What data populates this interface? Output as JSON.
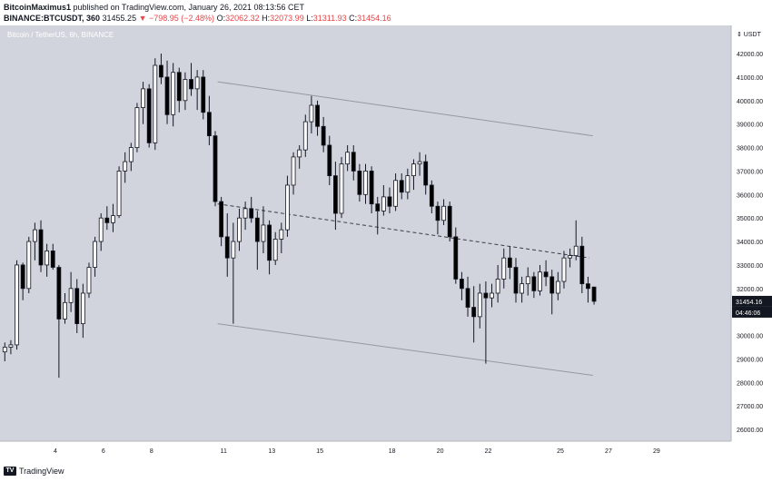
{
  "header": {
    "author": "BitcoinMaximus1",
    "published": "published on TradingView.com, January 26, 2021 08:13:56 CET",
    "symbol": "BINANCE:BTCUSDT, 360",
    "price": "31455.25",
    "change": "▼ −798.95 (−2.48%)",
    "o_label": "O:",
    "o_value": "32062.32",
    "h_label": "H:",
    "h_value": "32073.99",
    "l_label": "L:",
    "l_value": "31311.93",
    "c_label": "C:",
    "c_value": "31454.16"
  },
  "pair_label": "Bitcoin / TetherUS, 6h, BINANCE",
  "footer": {
    "brand": "TradingView",
    "icon": "tradingview-logo-icon"
  },
  "colors": {
    "background": "#d1d4dc",
    "up": "#ffffff",
    "down": "#000000",
    "wick": "#131722",
    "channel": "#9598a1",
    "price_tag": "#131722"
  },
  "chart_data": {
    "type": "candlestick",
    "y_unit": "USDT",
    "ylim": [
      25500,
      43200
    ],
    "y_ticks": [
      26000,
      27000,
      28000,
      29000,
      30000,
      31000,
      32000,
      33000,
      34000,
      35000,
      36000,
      37000,
      38000,
      39000,
      40000,
      41000,
      42000
    ],
    "y_tick_labels": [
      "26000.00",
      "27000.00",
      "28000.00",
      "29000.00",
      "30000.00",
      "31000.00",
      "32000.00",
      "33000.00",
      "34000.00",
      "35000.00",
      "36000.00",
      "37000.00",
      "38000.00",
      "39000.00",
      "40000.00",
      "41000.00",
      "42000.00"
    ],
    "x_ticks": [
      "4",
      "6",
      "8",
      "11",
      "13",
      "15",
      "18",
      "20",
      "22",
      "25",
      "27",
      "29"
    ],
    "x_tick_pos": [
      2.5,
      4.5,
      6.5,
      9.5,
      11.5,
      13.5,
      16.5,
      18.5,
      20.5,
      23.5,
      25.5,
      27.5
    ],
    "xlim": [
      0.2,
      30.6
    ],
    "last_price": "31454.16",
    "countdown": "04:46:06",
    "candles": [
      {
        "t": 0.4,
        "o": 29300,
        "h": 29700,
        "l": 28900,
        "c": 29500
      },
      {
        "t": 0.65,
        "o": 29500,
        "h": 29800,
        "l": 29200,
        "c": 29600
      },
      {
        "t": 0.9,
        "o": 29600,
        "h": 33200,
        "l": 29400,
        "c": 33000
      },
      {
        "t": 1.15,
        "o": 33000,
        "h": 33100,
        "l": 31500,
        "c": 32000
      },
      {
        "t": 1.4,
        "o": 32000,
        "h": 34200,
        "l": 31800,
        "c": 34000
      },
      {
        "t": 1.65,
        "o": 34000,
        "h": 34800,
        "l": 33200,
        "c": 34500
      },
      {
        "t": 1.9,
        "o": 34500,
        "h": 34900,
        "l": 32700,
        "c": 33000
      },
      {
        "t": 2.15,
        "o": 33000,
        "h": 33900,
        "l": 32500,
        "c": 33600
      },
      {
        "t": 2.4,
        "o": 33600,
        "h": 33900,
        "l": 32800,
        "c": 32900
      },
      {
        "t": 2.65,
        "o": 32900,
        "h": 33000,
        "l": 28200,
        "c": 30700
      },
      {
        "t": 2.9,
        "o": 30700,
        "h": 31800,
        "l": 30500,
        "c": 31400
      },
      {
        "t": 3.15,
        "o": 31400,
        "h": 32700,
        "l": 31000,
        "c": 32000
      },
      {
        "t": 3.4,
        "o": 32000,
        "h": 32400,
        "l": 30100,
        "c": 30500
      },
      {
        "t": 3.65,
        "o": 30500,
        "h": 32200,
        "l": 29900,
        "c": 31800
      },
      {
        "t": 3.9,
        "o": 31800,
        "h": 33100,
        "l": 31600,
        "c": 32900
      },
      {
        "t": 4.15,
        "o": 32900,
        "h": 34200,
        "l": 32500,
        "c": 34000
      },
      {
        "t": 4.4,
        "o": 34000,
        "h": 35200,
        "l": 33600,
        "c": 35000
      },
      {
        "t": 4.65,
        "o": 35000,
        "h": 35500,
        "l": 34500,
        "c": 34800
      },
      {
        "t": 4.9,
        "o": 34800,
        "h": 35600,
        "l": 34400,
        "c": 35100
      },
      {
        "t": 5.15,
        "o": 35100,
        "h": 37200,
        "l": 35000,
        "c": 37000
      },
      {
        "t": 5.4,
        "o": 37000,
        "h": 37800,
        "l": 36500,
        "c": 37400
      },
      {
        "t": 5.65,
        "o": 37400,
        "h": 38200,
        "l": 37000,
        "c": 38000
      },
      {
        "t": 5.9,
        "o": 38000,
        "h": 39900,
        "l": 37800,
        "c": 39700
      },
      {
        "t": 6.15,
        "o": 39700,
        "h": 40800,
        "l": 39000,
        "c": 40500
      },
      {
        "t": 6.4,
        "o": 40500,
        "h": 40700,
        "l": 38000,
        "c": 38200
      },
      {
        "t": 6.65,
        "o": 38200,
        "h": 41800,
        "l": 37900,
        "c": 41500
      },
      {
        "t": 6.9,
        "o": 41500,
        "h": 42000,
        "l": 40700,
        "c": 41000
      },
      {
        "t": 7.15,
        "o": 41000,
        "h": 41700,
        "l": 39000,
        "c": 39400
      },
      {
        "t": 7.4,
        "o": 39400,
        "h": 41600,
        "l": 38900,
        "c": 41200
      },
      {
        "t": 7.65,
        "o": 41200,
        "h": 41400,
        "l": 39500,
        "c": 40000
      },
      {
        "t": 7.9,
        "o": 40000,
        "h": 41200,
        "l": 39600,
        "c": 40900
      },
      {
        "t": 8.15,
        "o": 40900,
        "h": 41600,
        "l": 40200,
        "c": 40500
      },
      {
        "t": 8.4,
        "o": 40500,
        "h": 41300,
        "l": 39600,
        "c": 41000
      },
      {
        "t": 8.65,
        "o": 41000,
        "h": 41300,
        "l": 39200,
        "c": 39500
      },
      {
        "t": 8.9,
        "o": 39500,
        "h": 40200,
        "l": 38100,
        "c": 38500
      },
      {
        "t": 9.15,
        "o": 38500,
        "h": 38700,
        "l": 35500,
        "c": 35700
      },
      {
        "t": 9.4,
        "o": 35700,
        "h": 35900,
        "l": 33800,
        "c": 34200
      },
      {
        "t": 9.65,
        "o": 34200,
        "h": 35200,
        "l": 32500,
        "c": 33300
      },
      {
        "t": 9.9,
        "o": 33300,
        "h": 34800,
        "l": 30500,
        "c": 34000
      },
      {
        "t": 10.15,
        "o": 34000,
        "h": 35400,
        "l": 33600,
        "c": 35000
      },
      {
        "t": 10.4,
        "o": 35000,
        "h": 35700,
        "l": 34500,
        "c": 35400
      },
      {
        "t": 10.65,
        "o": 35400,
        "h": 35900,
        "l": 34800,
        "c": 35000
      },
      {
        "t": 10.9,
        "o": 35000,
        "h": 35300,
        "l": 32800,
        "c": 34000
      },
      {
        "t": 11.15,
        "o": 34000,
        "h": 35500,
        "l": 33500,
        "c": 34700
      },
      {
        "t": 11.4,
        "o": 34700,
        "h": 34900,
        "l": 32600,
        "c": 33200
      },
      {
        "t": 11.65,
        "o": 33200,
        "h": 34400,
        "l": 33000,
        "c": 34100
      },
      {
        "t": 11.9,
        "o": 34100,
        "h": 34800,
        "l": 33500,
        "c": 34500
      },
      {
        "t": 12.15,
        "o": 34500,
        "h": 36800,
        "l": 34200,
        "c": 36400
      },
      {
        "t": 12.4,
        "o": 36400,
        "h": 37800,
        "l": 36000,
        "c": 37600
      },
      {
        "t": 12.65,
        "o": 37600,
        "h": 38100,
        "l": 37100,
        "c": 37900
      },
      {
        "t": 12.9,
        "o": 37900,
        "h": 39400,
        "l": 37600,
        "c": 39100
      },
      {
        "t": 13.15,
        "o": 39100,
        "h": 40200,
        "l": 38600,
        "c": 39800
      },
      {
        "t": 13.4,
        "o": 39800,
        "h": 40000,
        "l": 38500,
        "c": 38900
      },
      {
        "t": 13.65,
        "o": 38900,
        "h": 39300,
        "l": 37800,
        "c": 38100
      },
      {
        "t": 13.9,
        "o": 38100,
        "h": 38500,
        "l": 36400,
        "c": 36800
      },
      {
        "t": 14.15,
        "o": 36800,
        "h": 37400,
        "l": 34500,
        "c": 35200
      },
      {
        "t": 14.4,
        "o": 35200,
        "h": 37600,
        "l": 35000,
        "c": 37300
      },
      {
        "t": 14.65,
        "o": 37300,
        "h": 38100,
        "l": 37000,
        "c": 37800
      },
      {
        "t": 14.9,
        "o": 37800,
        "h": 38100,
        "l": 36600,
        "c": 37000
      },
      {
        "t": 15.15,
        "o": 37000,
        "h": 37300,
        "l": 35700,
        "c": 36000
      },
      {
        "t": 15.4,
        "o": 36000,
        "h": 37300,
        "l": 35600,
        "c": 37000
      },
      {
        "t": 15.65,
        "o": 37000,
        "h": 37200,
        "l": 35200,
        "c": 35600
      },
      {
        "t": 15.9,
        "o": 35600,
        "h": 35900,
        "l": 34300,
        "c": 35300
      },
      {
        "t": 16.15,
        "o": 35300,
        "h": 36400,
        "l": 35100,
        "c": 35900
      },
      {
        "t": 16.4,
        "o": 35900,
        "h": 36300,
        "l": 35200,
        "c": 35500
      },
      {
        "t": 16.65,
        "o": 35500,
        "h": 36900,
        "l": 35300,
        "c": 36600
      },
      {
        "t": 16.9,
        "o": 36600,
        "h": 36900,
        "l": 35800,
        "c": 36100
      },
      {
        "t": 17.15,
        "o": 36100,
        "h": 37100,
        "l": 35800,
        "c": 36800
      },
      {
        "t": 17.4,
        "o": 36800,
        "h": 37500,
        "l": 36200,
        "c": 37300
      },
      {
        "t": 17.65,
        "o": 37300,
        "h": 37800,
        "l": 36800,
        "c": 37400
      },
      {
        "t": 17.9,
        "o": 37400,
        "h": 37700,
        "l": 36000,
        "c": 36400
      },
      {
        "t": 18.15,
        "o": 36400,
        "h": 36600,
        "l": 35200,
        "c": 35500
      },
      {
        "t": 18.4,
        "o": 35500,
        "h": 35700,
        "l": 34300,
        "c": 34900
      },
      {
        "t": 18.65,
        "o": 34900,
        "h": 35800,
        "l": 34700,
        "c": 35500
      },
      {
        "t": 18.9,
        "o": 35500,
        "h": 35700,
        "l": 34000,
        "c": 34200
      },
      {
        "t": 19.15,
        "o": 34200,
        "h": 34600,
        "l": 32200,
        "c": 32400
      },
      {
        "t": 19.4,
        "o": 32400,
        "h": 32700,
        "l": 31500,
        "c": 32000
      },
      {
        "t": 19.65,
        "o": 32000,
        "h": 32500,
        "l": 30800,
        "c": 31200
      },
      {
        "t": 19.9,
        "o": 31200,
        "h": 32100,
        "l": 29700,
        "c": 30800
      },
      {
        "t": 20.15,
        "o": 30800,
        "h": 32200,
        "l": 30300,
        "c": 31800
      },
      {
        "t": 20.4,
        "o": 31800,
        "h": 32300,
        "l": 28800,
        "c": 31600
      },
      {
        "t": 20.65,
        "o": 31600,
        "h": 32200,
        "l": 31200,
        "c": 31800
      },
      {
        "t": 20.9,
        "o": 31800,
        "h": 33000,
        "l": 31400,
        "c": 32400
      },
      {
        "t": 21.15,
        "o": 32400,
        "h": 33700,
        "l": 32000,
        "c": 33300
      },
      {
        "t": 21.4,
        "o": 33300,
        "h": 33800,
        "l": 32400,
        "c": 32900
      },
      {
        "t": 21.65,
        "o": 32900,
        "h": 33300,
        "l": 31400,
        "c": 31800
      },
      {
        "t": 21.9,
        "o": 31800,
        "h": 32500,
        "l": 31400,
        "c": 32200
      },
      {
        "t": 22.15,
        "o": 32200,
        "h": 32900,
        "l": 31700,
        "c": 32500
      },
      {
        "t": 22.4,
        "o": 32500,
        "h": 32700,
        "l": 31600,
        "c": 31900
      },
      {
        "t": 22.65,
        "o": 31900,
        "h": 33000,
        "l": 31700,
        "c": 32700
      },
      {
        "t": 22.9,
        "o": 32700,
        "h": 33200,
        "l": 32100,
        "c": 32500
      },
      {
        "t": 23.15,
        "o": 32500,
        "h": 32800,
        "l": 30900,
        "c": 31800
      },
      {
        "t": 23.4,
        "o": 31800,
        "h": 32700,
        "l": 31500,
        "c": 32300
      },
      {
        "t": 23.65,
        "o": 32300,
        "h": 33600,
        "l": 32000,
        "c": 33300
      },
      {
        "t": 23.9,
        "o": 33300,
        "h": 33700,
        "l": 32900,
        "c": 33400
      },
      {
        "t": 24.15,
        "o": 33400,
        "h": 34900,
        "l": 33200,
        "c": 33800
      },
      {
        "t": 24.4,
        "o": 33800,
        "h": 34200,
        "l": 31800,
        "c": 32200
      },
      {
        "t": 24.65,
        "o": 32200,
        "h": 32500,
        "l": 31400,
        "c": 32000
      },
      {
        "t": 24.9,
        "o": 32062,
        "h": 32074,
        "l": 31312,
        "c": 31454
      }
    ],
    "channel_lines": [
      {
        "kind": "solid",
        "t1": 9.25,
        "p1": 40800,
        "t2": 24.85,
        "p2": 38500
      },
      {
        "kind": "solid",
        "t1": 9.25,
        "p1": 30500,
        "t2": 24.85,
        "p2": 28300
      },
      {
        "kind": "dashed",
        "t1": 9.25,
        "p1": 35600,
        "t2": 24.7,
        "p2": 33300
      }
    ]
  }
}
